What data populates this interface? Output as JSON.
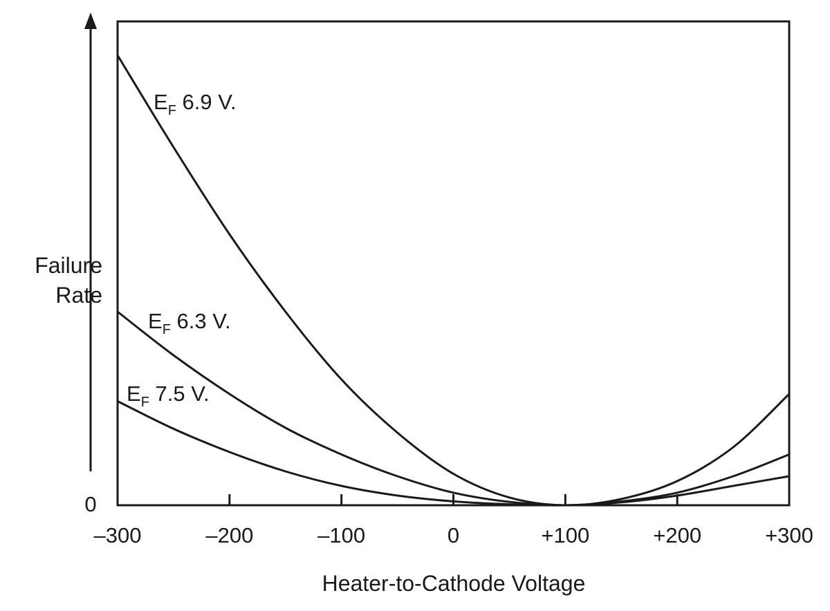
{
  "chart_data": {
    "type": "line",
    "xlabel": "Heater-to-Cathode Voltage",
    "ylabel_lines": [
      "Failure",
      "Rate"
    ],
    "ytick_label": "0",
    "xlim": [
      -300,
      300
    ],
    "ylim": [
      0,
      100
    ],
    "grid": false,
    "xticks": [
      {
        "value": -300,
        "label": "–300"
      },
      {
        "value": -200,
        "label": "–200"
      },
      {
        "value": -100,
        "label": "–100"
      },
      {
        "value": 0,
        "label": "0"
      },
      {
        "value": 100,
        "label": "+100"
      },
      {
        "value": 200,
        "label": "+200"
      },
      {
        "value": 300,
        "label": "+300"
      }
    ],
    "series": [
      {
        "label_main": "E",
        "label_sub": "F",
        "label_rest": " 6.9 V.",
        "x": [
          -300,
          -250,
          -200,
          -150,
          -100,
          -50,
          0,
          50,
          100,
          150,
          200,
          250,
          300
        ],
        "y": [
          93,
          74,
          56,
          40,
          26,
          15,
          6.5,
          1.6,
          0,
          1.3,
          5,
          12,
          23
        ]
      },
      {
        "label_main": "E",
        "label_sub": "F",
        "label_rest": " 6.3 V.",
        "x": [
          -300,
          -250,
          -200,
          -150,
          -100,
          -50,
          0,
          50,
          100,
          150,
          200,
          250,
          300
        ],
        "y": [
          40,
          31,
          23,
          16,
          10.5,
          6,
          2.6,
          0.7,
          0,
          0.8,
          2.6,
          6,
          10.5
        ]
      },
      {
        "label_main": "E",
        "label_sub": "F",
        "label_rest": " 7.5 V.",
        "x": [
          -300,
          -250,
          -200,
          -150,
          -100,
          -50,
          0,
          50,
          100,
          150,
          200,
          250,
          300
        ],
        "y": [
          21.5,
          15.8,
          11,
          7,
          4,
          2,
          0.8,
          0.2,
          0,
          0.6,
          2,
          4,
          6
        ]
      }
    ]
  }
}
